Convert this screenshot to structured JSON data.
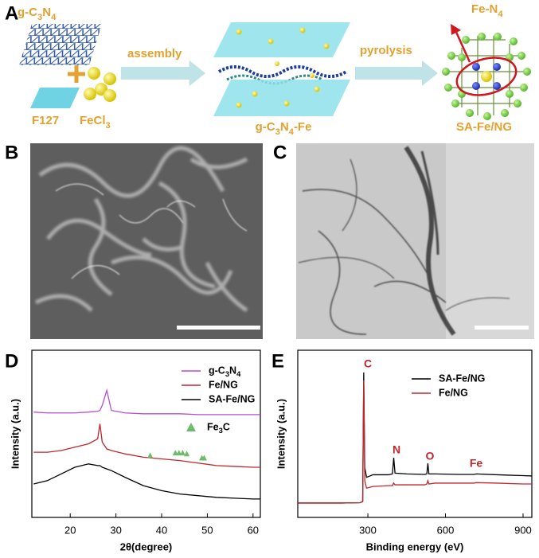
{
  "panel_labels": [
    "A",
    "B",
    "C",
    "D",
    "E"
  ],
  "schematic": {
    "precursor": "g-C3N4",
    "surfactant": "F127",
    "iron_salt": "FeCl3",
    "step_1": "assembly",
    "intermediate": "g-C3N4-Fe",
    "step_2": "pyrolysis",
    "site": "Fe-N4",
    "product": "SA-Fe/NG"
  },
  "chart_data": [
    {
      "type": "line",
      "x_label": "2θ(degree)",
      "y_label": "Intensity (a.u.)",
      "x": [
        12,
        15,
        18,
        21,
        24,
        26,
        26.5,
        27,
        28,
        29,
        32,
        36,
        40,
        44,
        48,
        52,
        56,
        60,
        61.6
      ],
      "xlim": [
        11.6,
        61.6
      ],
      "xticks": [
        20,
        30,
        40,
        50,
        60
      ],
      "ylim": [
        0,
        100
      ],
      "legend": "upper right",
      "series": [
        {
          "name": "g-C3N4",
          "color": "#b44fd6",
          "values": [
            63,
            62.5,
            62.5,
            62.5,
            63,
            63.5,
            64,
            67,
            76,
            64,
            62.5,
            62,
            62,
            62,
            61.5,
            61.5,
            61.5,
            61.5,
            61.5
          ]
        },
        {
          "name": "Fe/NG",
          "color": "#c0272d",
          "values": [
            39,
            39,
            40,
            42,
            44,
            47,
            56,
            45,
            41,
            40,
            38,
            36,
            35,
            34,
            32.5,
            31,
            30.5,
            30,
            30
          ]
        },
        {
          "name": "SA-Fe/NG",
          "color": "#000000",
          "values": [
            20,
            22,
            26,
            30,
            32,
            31,
            31,
            30,
            29,
            28,
            24,
            19,
            16,
            14,
            13,
            12,
            11.5,
            11,
            11
          ]
        }
      ],
      "markers": {
        "name": "Fe3C",
        "color": "#6dbb6a",
        "x": [
          37.5,
          43,
          43.8,
          44.6,
          45.5,
          48.8,
          49.3
        ],
        "values": [
          37,
          38.5,
          38.5,
          38.5,
          38,
          35.5,
          35.5
        ]
      }
    },
    {
      "type": "line",
      "x_label": "Binding energy (eV)",
      "y_label": "Intensity (a.u.)",
      "x": [
        29,
        100,
        200,
        270,
        280,
        284,
        288,
        295,
        320,
        380,
        395,
        400,
        405,
        450,
        520,
        528,
        532,
        536,
        560,
        650,
        710,
        720,
        800,
        900,
        934
      ],
      "xlim": [
        29,
        934
      ],
      "xticks": [
        300,
        600,
        900
      ],
      "ylim": [
        0,
        100
      ],
      "legend": "upper right",
      "series": [
        {
          "name": "SA-Fe/NG",
          "color": "#000000",
          "values": [
            8.6,
            8.6,
            8.6,
            8.8,
            9.5,
            86.7,
            30,
            24,
            25.5,
            25.5,
            26,
            35.7,
            26.5,
            26,
            25.7,
            26,
            32.4,
            26,
            26,
            25.7,
            25.7,
            26,
            25.5,
            25,
            24.8
          ]
        },
        {
          "name": "Fe/NG",
          "color": "#c0272d",
          "values": [
            8.6,
            8.6,
            8.6,
            8.8,
            9.5,
            82,
            22,
            17.5,
            18.5,
            19,
            19,
            20.5,
            19.5,
            19.5,
            19.5,
            20,
            22,
            20,
            20.5,
            20.5,
            20.5,
            20.8,
            20.5,
            20,
            20
          ]
        }
      ],
      "annotations": [
        "C",
        "N",
        "O",
        "Fe"
      ]
    }
  ]
}
